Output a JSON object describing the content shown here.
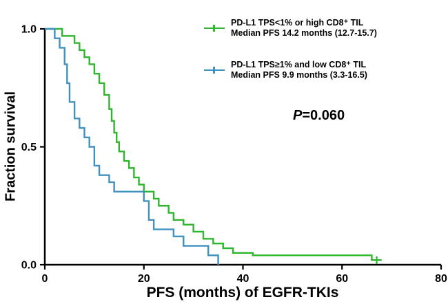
{
  "chart_data": {
    "type": "line",
    "subtype": "kaplan-meier-step",
    "title": "",
    "xlabel": "PFS (months) of EGFR-TKIs",
    "ylabel": "Fraction survival",
    "xlim": [
      0,
      80
    ],
    "ylim": [
      0,
      1.0
    ],
    "xticks": [
      0,
      20,
      40,
      60,
      80
    ],
    "xtick_labels": [
      "0",
      "20",
      "40",
      "60",
      "80"
    ],
    "yticks": [
      0.0,
      0.5,
      1.0
    ],
    "ytick_labels": [
      "0.0",
      "0.5",
      "1.0"
    ],
    "grid": false,
    "legend_position": "top-right",
    "annotation": {
      "p_label": "P",
      "p_value": "=0.060"
    },
    "series": [
      {
        "id": "high-cd8",
        "name": "PD-L1 TPS<1% or high CD8⁺ TIL",
        "median_pfs_label": "Median PFS 14.2 months (12.7-15.7)",
        "color": "#2eb62e",
        "points": [
          [
            0,
            1.0
          ],
          [
            3.5,
            0.97
          ],
          [
            6,
            0.94
          ],
          [
            7,
            0.91
          ],
          [
            8,
            0.88
          ],
          [
            9,
            0.85
          ],
          [
            10,
            0.81
          ],
          [
            11,
            0.77
          ],
          [
            12,
            0.72
          ],
          [
            13,
            0.66
          ],
          [
            13.5,
            0.61
          ],
          [
            14,
            0.56
          ],
          [
            14.5,
            0.52
          ],
          [
            15,
            0.48
          ],
          [
            16,
            0.44
          ],
          [
            17,
            0.41
          ],
          [
            18,
            0.37
          ],
          [
            19,
            0.34
          ],
          [
            20,
            0.31
          ],
          [
            22,
            0.28
          ],
          [
            23,
            0.25
          ],
          [
            25,
            0.22
          ],
          [
            26,
            0.19
          ],
          [
            28,
            0.17
          ],
          [
            30,
            0.14
          ],
          [
            32,
            0.11
          ],
          [
            34,
            0.09
          ],
          [
            36,
            0.07
          ],
          [
            38,
            0.05
          ],
          [
            42,
            0.04
          ],
          [
            66,
            0.02
          ],
          [
            68,
            0.02
          ]
        ],
        "censor_marks": [
          [
            67,
            0.02
          ]
        ]
      },
      {
        "id": "low-cd8",
        "name": "PD-L1 TPS≥1% and low CD8⁺ TIL",
        "median_pfs_label": "Median PFS 9.9 months (3.3-16.5)",
        "color": "#4090c0",
        "points": [
          [
            0,
            1.0
          ],
          [
            2,
            0.96
          ],
          [
            3,
            0.92
          ],
          [
            4,
            0.85
          ],
          [
            4.5,
            0.77
          ],
          [
            5,
            0.69
          ],
          [
            6,
            0.62
          ],
          [
            7,
            0.58
          ],
          [
            8,
            0.54
          ],
          [
            9,
            0.5
          ],
          [
            10,
            0.42
          ],
          [
            11,
            0.38
          ],
          [
            13,
            0.35
          ],
          [
            14,
            0.31
          ],
          [
            20,
            0.27
          ],
          [
            21,
            0.19
          ],
          [
            22,
            0.15
          ],
          [
            26,
            0.12
          ],
          [
            28,
            0.08
          ],
          [
            33,
            0.04
          ],
          [
            35,
            0.0
          ]
        ],
        "censor_marks": []
      }
    ]
  }
}
